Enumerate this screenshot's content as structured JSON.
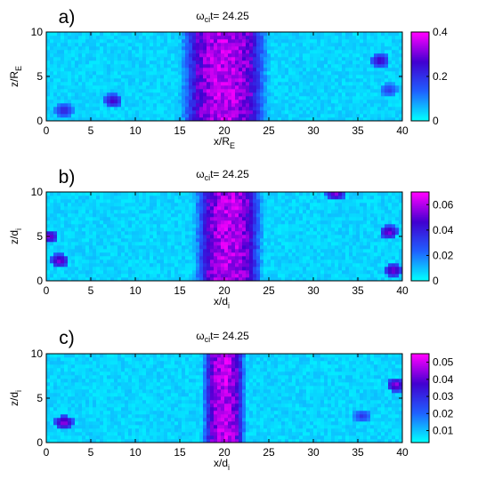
{
  "chart_data": [
    {
      "type": "heatmap",
      "panel_label": "a)",
      "title_main": "ω",
      "title_sub": "ci",
      "title_tail": "t= 24.25",
      "xlabel_main": "x/R",
      "xlabel_sub": "E",
      "ylabel_main": "z/R",
      "ylabel_sub": "E",
      "xlim": [
        0,
        40
      ],
      "ylim": [
        0,
        10
      ],
      "xticks": [
        0,
        5,
        10,
        15,
        20,
        25,
        30,
        35,
        40
      ],
      "yticks": [
        0,
        5,
        10
      ],
      "colorbar": {
        "range": [
          0,
          0.4
        ],
        "ticks": [
          0,
          0.2,
          0.4
        ],
        "tick_labels": [
          "0",
          "0.2",
          "0.4"
        ]
      },
      "colormap": [
        "#00ffff",
        "#2060ff",
        "#4000d0",
        "#ff00ff"
      ],
      "features": {
        "central_band": {
          "x_center": 20,
          "half_width": 3.2,
          "peak_value": 0.4
        },
        "patches": [
          {
            "x": 2,
            "z": 1.2,
            "value": 0.25
          },
          {
            "x": 7.5,
            "z": 2.3,
            "value": 0.3
          },
          {
            "x": 37.5,
            "z": 6.8,
            "value": 0.3
          },
          {
            "x": 38.5,
            "z": 3.5,
            "value": 0.2
          }
        ]
      }
    },
    {
      "type": "heatmap",
      "panel_label": "b)",
      "title_main": "ω",
      "title_sub": "ci",
      "title_tail": "t= 24.25",
      "xlabel_main": "x/d",
      "xlabel_sub": "i",
      "ylabel_main": "z/d",
      "ylabel_sub": "i",
      "xlim": [
        0,
        40
      ],
      "ylim": [
        0,
        10
      ],
      "xticks": [
        0,
        5,
        10,
        15,
        20,
        25,
        30,
        35,
        40
      ],
      "yticks": [
        0,
        5,
        10
      ],
      "colorbar": {
        "range": [
          0,
          0.07
        ],
        "ticks": [
          0,
          0.02,
          0.04,
          0.06
        ],
        "tick_labels": [
          "0",
          "0.02",
          "0.04",
          "0.06"
        ]
      },
      "colormap": [
        "#00ffff",
        "#2060ff",
        "#4000d0",
        "#ff00ff"
      ],
      "features": {
        "central_band": {
          "x_center": 20.5,
          "half_width": 2.5,
          "peak_value": 0.07
        },
        "patches": [
          {
            "x": 1.5,
            "z": 2.3,
            "value": 0.06
          },
          {
            "x": 0.3,
            "z": 5,
            "value": 0.06
          },
          {
            "x": 38.5,
            "z": 5.5,
            "value": 0.06
          },
          {
            "x": 39,
            "z": 1.2,
            "value": 0.06
          },
          {
            "x": 32.5,
            "z": 9.8,
            "value": 0.06
          }
        ]
      }
    },
    {
      "type": "heatmap",
      "panel_label": "c)",
      "title_main": "ω",
      "title_sub": "ci",
      "title_tail": "t= 24.25",
      "xlabel_main": "x/d",
      "xlabel_sub": "i",
      "ylabel_main": "z/d",
      "ylabel_sub": "i",
      "xlim": [
        0,
        40
      ],
      "ylim": [
        0,
        10
      ],
      "xticks": [
        0,
        5,
        10,
        15,
        20,
        25,
        30,
        35,
        40
      ],
      "yticks": [
        0,
        5,
        10
      ],
      "colorbar": {
        "range": [
          0.003,
          0.055
        ],
        "ticks": [
          0.01,
          0.02,
          0.03,
          0.04,
          0.05
        ],
        "tick_labels": [
          "0.01",
          "0.02",
          "0.03",
          "0.04",
          "0.05"
        ]
      },
      "colormap": [
        "#00ffff",
        "#2060ff",
        "#4000d0",
        "#ff00ff"
      ],
      "features": {
        "central_band": {
          "x_center": 20,
          "half_width": 1.6,
          "peak_value": 0.05
        },
        "patches": [
          {
            "x": 2,
            "z": 2.3,
            "value": 0.05
          },
          {
            "x": 39.3,
            "z": 6.5,
            "value": 0.05
          },
          {
            "x": 35.5,
            "z": 3,
            "value": 0.03
          }
        ]
      }
    }
  ]
}
